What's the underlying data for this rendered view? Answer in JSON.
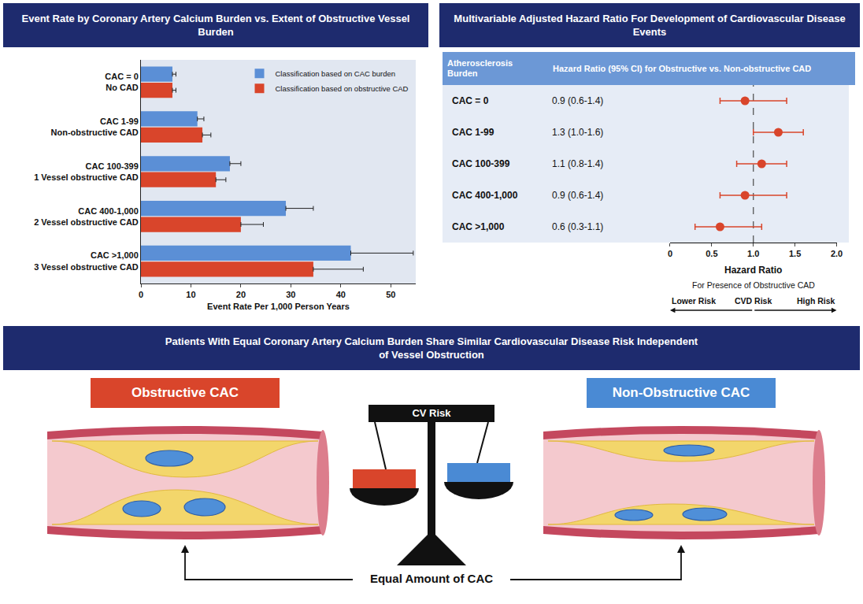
{
  "chart_data": [
    {
      "type": "bar",
      "title": "Event Rate by Coronary Artery Calcium Burden vs. Extent of Obstructive Vessel Burden",
      "orientation": "horizontal",
      "x_label": "Event Rate Per 1,000 Person Years",
      "xlim": [
        0,
        55
      ],
      "xticks": [
        0,
        10,
        20,
        30,
        40,
        50
      ],
      "grid": false,
      "legend": "top-right",
      "series": [
        {
          "name": "Classification based on CAC burden",
          "color": "#5b8fd6",
          "categories": [
            "CAC = 0",
            "CAC 1-99",
            "CAC 100-399",
            "CAC 400-1,000",
            "CAC >1,000"
          ],
          "values": [
            6.3,
            11.3,
            17.8,
            29,
            42
          ],
          "error_plus": [
            0.7,
            1.3,
            2.2,
            5.5,
            12.5
          ]
        },
        {
          "name": "Classification based on obstructive CAD",
          "color": "#d9452b",
          "categories": [
            "No CAD",
            "Non-obstructive CAD",
            "1 Vessel obstructive CAD",
            "2 Vessel obstructive CAD",
            "3 Vessel obstructive CAD"
          ],
          "values": [
            6.3,
            12.3,
            15,
            20,
            34.5
          ],
          "error_plus": [
            0.7,
            1.7,
            2,
            4.5,
            10
          ]
        }
      ]
    },
    {
      "type": "forest",
      "title": "Multivariable Adjusted Hazard Ratio For Development of Cardiovascular Disease Events",
      "columns": [
        "Atherosclerosis Burden",
        "Hazard Ratio (95% CI) for Obstructive vs. Non-obstructive CAD"
      ],
      "categories": [
        "CAC = 0",
        "CAC 1-99",
        "CAC 100-399",
        "CAC 400-1,000",
        "CAC >1,000"
      ],
      "values": [
        0.9,
        1.3,
        1.1,
        0.9,
        0.6
      ],
      "lower": [
        0.6,
        1.0,
        0.8,
        0.6,
        0.3
      ],
      "upper": [
        1.4,
        1.6,
        1.4,
        1.4,
        1.1
      ],
      "value_labels": [
        "0.9 (0.6-1.4)",
        "1.3 (1.0-1.6)",
        "1.1 (0.8-1.4)",
        "0.9 (0.6-1.4)",
        "0.6 (0.3-1.1)"
      ],
      "color": "#d9452b",
      "marker": "circle",
      "reference_value": 1,
      "x_label": "Hazard Ratio",
      "x_sublabel": "For Presence of Obstructive CAD",
      "direction_labels": [
        "Lower Risk",
        "CVD Risk",
        "High Risk"
      ],
      "xlim": [
        0,
        2
      ],
      "xticks": [
        0,
        0.5,
        {
          "value": 1,
          "label": "1.0"
        },
        1.5,
        {
          "value": 2,
          "label": "2.0"
        }
      ],
      "grid": false,
      "tick_labels": "x"
    }
  ],
  "banner": "Patients With Equal Coronary Artery Calcium Burden Share Similar Cardiovascular Disease Risk Independent of Vessel Obstruction",
  "diagram": {
    "left_label": "Obstructive CAC",
    "right_label": "Non-Obstructive CAC",
    "scale_label": "CV Risk",
    "bracket_label": "Equal Amount of CAC"
  }
}
